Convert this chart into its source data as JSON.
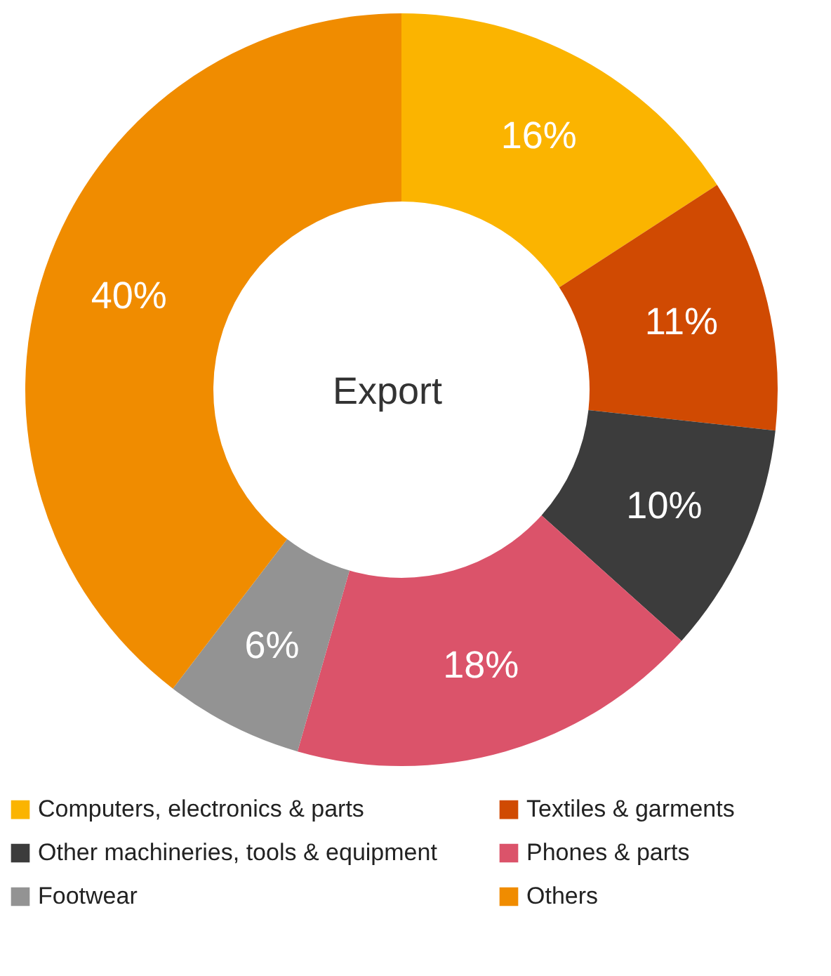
{
  "chart_data": {
    "type": "donut",
    "title": "Export",
    "categories": [
      "Computers, electronics & parts",
      "Textiles & garments",
      "Other machineries, tools & equipment",
      "Phones & parts",
      "Footwear",
      "Others"
    ],
    "values": [
      16,
      11,
      10,
      18,
      6,
      40
    ],
    "colors": [
      "#fbb400",
      "#d04a02",
      "#3c3c3c",
      "#db536a",
      "#939393",
      "#f08c00"
    ],
    "value_labels": [
      "16%",
      "11%",
      "10%",
      "18%",
      "6%",
      "40%"
    ],
    "legend": "bottom"
  }
}
